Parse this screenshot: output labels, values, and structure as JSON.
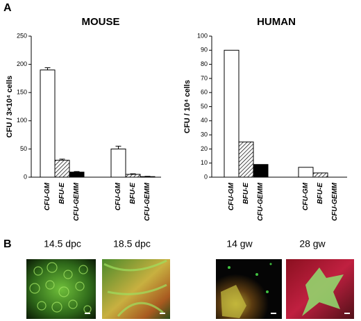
{
  "panels": {
    "a": "A",
    "b": "B"
  },
  "chart_data": [
    {
      "type": "bar",
      "title": "MOUSE",
      "y_label": "CFU / 3×10⁴ cells",
      "categories": [
        "14.5 dpc",
        "18.5 dpc"
      ],
      "series": [
        {
          "name": "CFU-GM",
          "color": "#ffffff",
          "values": [
            190,
            50
          ],
          "errors": [
            4,
            5
          ]
        },
        {
          "name": "BFU-E",
          "color": "#ffffff",
          "hatch": true,
          "values": [
            30,
            5
          ],
          "errors": [
            2,
            1
          ]
        },
        {
          "name": "CFU-GEMM",
          "color": "#000000",
          "values": [
            9,
            1
          ],
          "errors": [
            1,
            0.5
          ]
        }
      ],
      "ylim": [
        0,
        250
      ],
      "yticks": [
        0,
        50,
        100,
        150,
        200,
        250
      ]
    },
    {
      "type": "bar",
      "title": "HUMAN",
      "y_label": "CFU / 10⁴ cells",
      "categories": [
        "14 gw",
        "28 gw"
      ],
      "series": [
        {
          "name": "CFU-GM",
          "color": "#ffffff",
          "values": [
            90,
            7
          ]
        },
        {
          "name": "BFU-E",
          "color": "#ffffff",
          "hatch": true,
          "values": [
            25,
            3
          ]
        },
        {
          "name": "CFU-GEMM",
          "color": "#000000",
          "values": [
            9,
            0
          ]
        }
      ],
      "ylim": [
        0,
        100
      ],
      "yticks": [
        0,
        10,
        20,
        30,
        40,
        50,
        60,
        70,
        80,
        90,
        100
      ]
    }
  ]
}
